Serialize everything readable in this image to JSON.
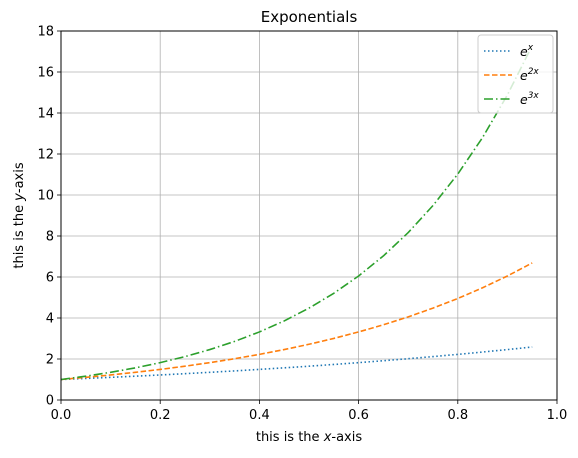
{
  "chart_data": {
    "type": "line",
    "title": "Exponentials",
    "xlabel_prefix": "this is the ",
    "xlabel_var": "x",
    "xlabel_suffix": "-axis",
    "ylabel_prefix": "this is the ",
    "ylabel_var": "y",
    "ylabel_suffix": "-axis",
    "xlim": [
      0.0,
      1.0
    ],
    "ylim": [
      0,
      18
    ],
    "xticks": [
      0.0,
      0.2,
      0.4,
      0.6,
      0.8,
      1.0
    ],
    "xtick_labels": [
      "0.0",
      "0.2",
      "0.4",
      "0.6",
      "0.8",
      "1.0"
    ],
    "yticks": [
      0,
      2,
      4,
      6,
      8,
      10,
      12,
      14,
      16,
      18
    ],
    "ytick_labels": [
      "0",
      "2",
      "4",
      "6",
      "8",
      "10",
      "12",
      "14",
      "16",
      "18"
    ],
    "grid": true,
    "legend_position": "top-right",
    "x": [
      0.0,
      0.05,
      0.1,
      0.15,
      0.2,
      0.25,
      0.3,
      0.35,
      0.4,
      0.45,
      0.5,
      0.55,
      0.6,
      0.65,
      0.7,
      0.75,
      0.8,
      0.85,
      0.9,
      0.95
    ],
    "series": [
      {
        "name_base": "e",
        "name_exp": "x",
        "color": "#1f77b4",
        "style": "dotted",
        "values": [
          1.0,
          1.051,
          1.105,
          1.162,
          1.221,
          1.284,
          1.35,
          1.419,
          1.492,
          1.568,
          1.649,
          1.733,
          1.822,
          1.916,
          2.014,
          2.117,
          2.226,
          2.34,
          2.46,
          2.586
        ]
      },
      {
        "name_base": "e",
        "name_exp": "2x",
        "color": "#ff7f0e",
        "style": "dashed",
        "values": [
          1.0,
          1.105,
          1.221,
          1.35,
          1.492,
          1.649,
          1.822,
          2.014,
          2.226,
          2.46,
          2.718,
          3.004,
          3.32,
          3.669,
          4.055,
          4.482,
          4.953,
          5.474,
          6.05,
          6.686
        ]
      },
      {
        "name_base": "e",
        "name_exp": "3x",
        "color": "#2ca02c",
        "style": "dashdot",
        "values": [
          1.0,
          1.162,
          1.35,
          1.568,
          1.822,
          2.117,
          2.46,
          2.858,
          3.32,
          3.857,
          4.482,
          5.207,
          6.05,
          7.029,
          8.166,
          9.488,
          11.023,
          12.807,
          14.88,
          17.288
        ]
      }
    ]
  }
}
